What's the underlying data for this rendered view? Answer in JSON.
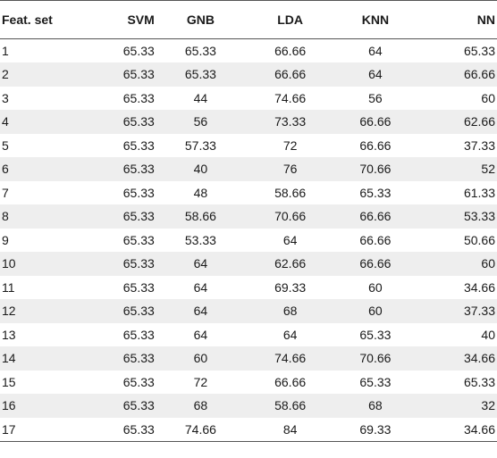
{
  "table": {
    "headers": [
      "Feat. set",
      "SVM",
      "GNB",
      "LDA",
      "KNN",
      "NN"
    ],
    "rows": [
      [
        "1",
        "65.33",
        "65.33",
        "66.66",
        "64",
        "65.33"
      ],
      [
        "2",
        "65.33",
        "65.33",
        "66.66",
        "64",
        "66.66"
      ],
      [
        "3",
        "65.33",
        "44",
        "74.66",
        "56",
        "60"
      ],
      [
        "4",
        "65.33",
        "56",
        "73.33",
        "66.66",
        "62.66"
      ],
      [
        "5",
        "65.33",
        "57.33",
        "72",
        "66.66",
        "37.33"
      ],
      [
        "6",
        "65.33",
        "40",
        "76",
        "70.66",
        "52"
      ],
      [
        "7",
        "65.33",
        "48",
        "58.66",
        "65.33",
        "61.33"
      ],
      [
        "8",
        "65.33",
        "58.66",
        "70.66",
        "66.66",
        "53.33"
      ],
      [
        "9",
        "65.33",
        "53.33",
        "64",
        "66.66",
        "50.66"
      ],
      [
        "10",
        "65.33",
        "64",
        "62.66",
        "66.66",
        "60"
      ],
      [
        "11",
        "65.33",
        "64",
        "69.33",
        "60",
        "34.66"
      ],
      [
        "12",
        "65.33",
        "64",
        "68",
        "60",
        "37.33"
      ],
      [
        "13",
        "65.33",
        "64",
        "64",
        "65.33",
        "40"
      ],
      [
        "14",
        "65.33",
        "60",
        "74.66",
        "70.66",
        "34.66"
      ],
      [
        "15",
        "65.33",
        "72",
        "66.66",
        "65.33",
        "65.33"
      ],
      [
        "16",
        "65.33",
        "68",
        "58.66",
        "68",
        "32"
      ],
      [
        "17",
        "65.33",
        "74.66",
        "84",
        "69.33",
        "34.66"
      ]
    ]
  }
}
